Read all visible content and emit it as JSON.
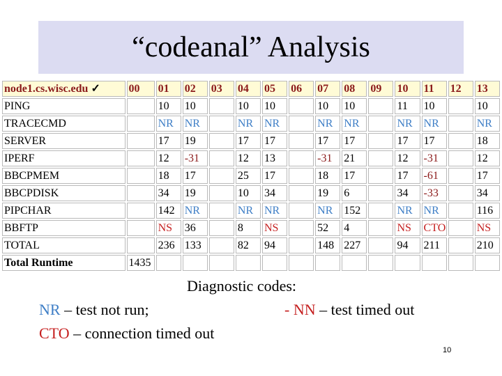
{
  "title": "“codeanal” Analysis",
  "table": {
    "host": "node1.cs.wisc.edu",
    "columns": [
      "00",
      "01",
      "02",
      "03",
      "04",
      "05",
      "06",
      "07",
      "08",
      "09",
      "10",
      "11",
      "12",
      "13"
    ],
    "rows": [
      {
        "label": "PING",
        "cells": [
          "",
          "10",
          "10",
          "",
          "10",
          "10",
          "",
          "10",
          "10",
          "",
          "11",
          "10",
          "",
          "10"
        ]
      },
      {
        "label": "TRACECMD",
        "cells": [
          "",
          "NR",
          "NR",
          "",
          "NR",
          "NR",
          "",
          "NR",
          "NR",
          "",
          "NR",
          "NR",
          "",
          "NR"
        ]
      },
      {
        "label": "SERVER",
        "cells": [
          "",
          "17",
          "19",
          "",
          "17",
          "17",
          "",
          "17",
          "17",
          "",
          "17",
          "17",
          "",
          "18"
        ]
      },
      {
        "label": "IPERF",
        "cells": [
          "",
          "12",
          "-31",
          "",
          "12",
          "13",
          "",
          "-31",
          "21",
          "",
          "12",
          "-31",
          "",
          "12"
        ]
      },
      {
        "label": "BBCPMEM",
        "cells": [
          "",
          "18",
          "17",
          "",
          "25",
          "17",
          "",
          "18",
          "17",
          "",
          "17",
          "-61",
          "",
          "17"
        ]
      },
      {
        "label": "BBCPDISK",
        "cells": [
          "",
          "34",
          "19",
          "",
          "10",
          "34",
          "",
          "19",
          "6",
          "",
          "34",
          "-33",
          "",
          "34"
        ]
      },
      {
        "label": "PIPCHAR",
        "cells": [
          "",
          "142",
          "NR",
          "",
          "NR",
          "NR",
          "",
          "NR",
          "152",
          "",
          "NR",
          "NR",
          "",
          "116"
        ]
      },
      {
        "label": "BBFTP",
        "cells": [
          "",
          "NS",
          "36",
          "",
          "8",
          "NS",
          "",
          "52",
          "4",
          "",
          "NS",
          "CTO",
          "",
          "NS"
        ]
      },
      {
        "label": "TOTAL",
        "cells": [
          "",
          "236",
          "133",
          "",
          "82",
          "94",
          "",
          "148",
          "227",
          "",
          "94",
          "211",
          "",
          "210"
        ]
      },
      {
        "label": "Total Runtime",
        "cells": [
          "1435",
          "",
          "",
          "",
          "",
          "",
          "",
          "",
          "",
          "",
          "",
          "",
          "",
          ""
        ]
      }
    ]
  },
  "legend": {
    "heading": "Diagnostic codes:",
    "nr_code": "NR",
    "nr_text": " – test not run;",
    "nn_dash": "- ",
    "nn_code": "NN",
    "nn_text": " – test timed out",
    "cto_code": "CTO",
    "cto_text": " – connection timed out"
  },
  "page_number": "10",
  "colors": {
    "title_bg": "#dcdcf2",
    "header_bg": "#fffbd6",
    "header_text": "#8b1a1a",
    "nr": "#3e7ec6",
    "error_red": "#c51f1f",
    "negative": "#8b1a1a"
  }
}
